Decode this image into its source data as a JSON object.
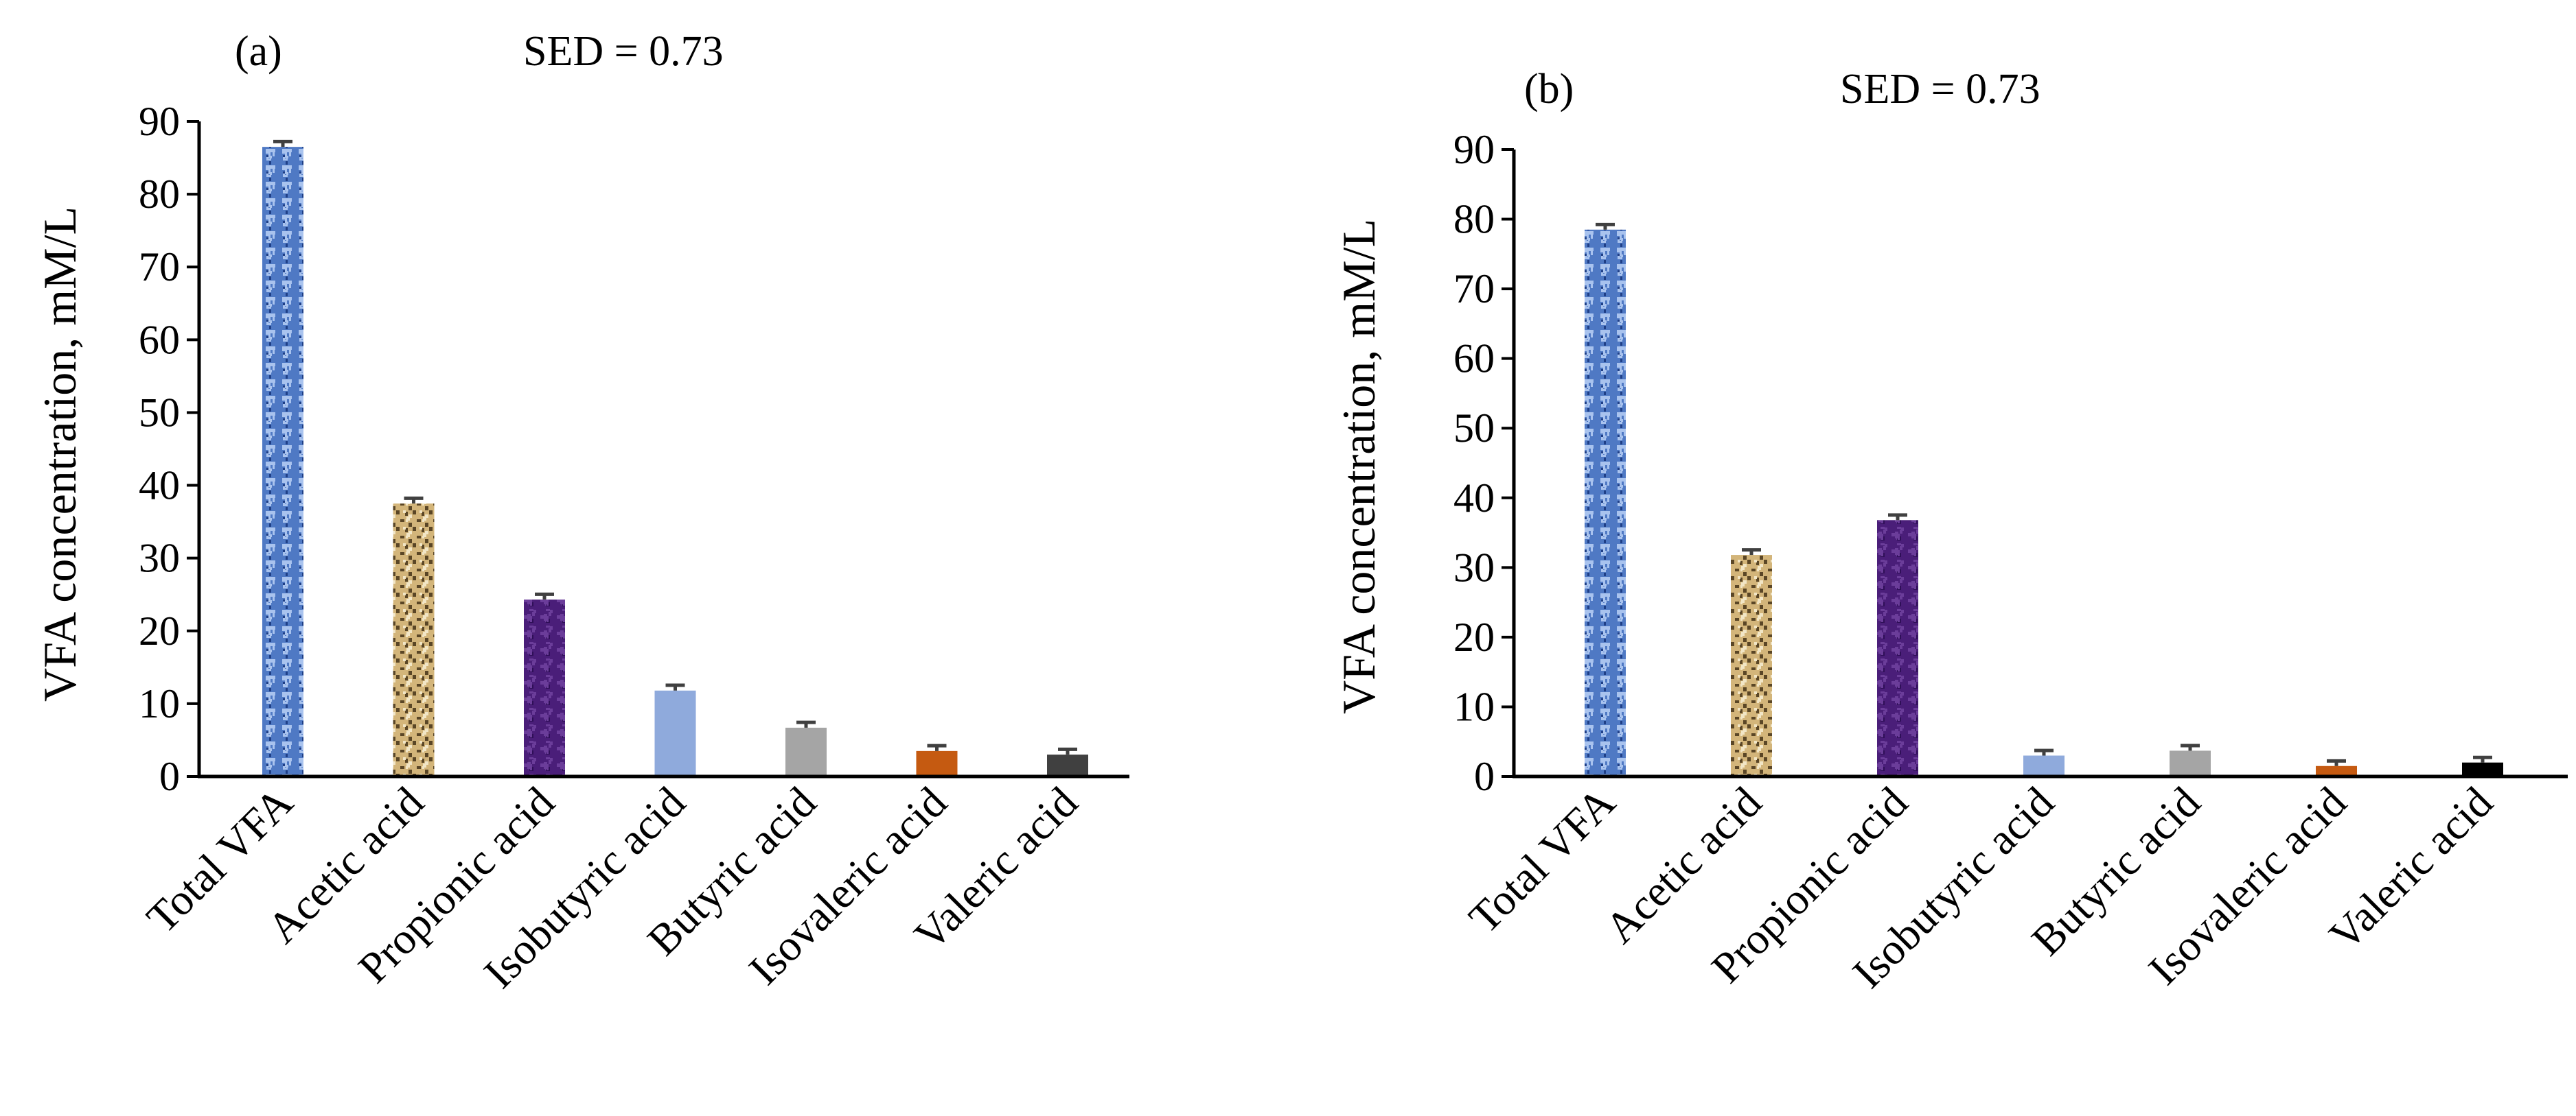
{
  "figure": {
    "sed_label": "SED = 0.73"
  },
  "patterns": {
    "blue_pattern": {
      "base": "#4f79c4",
      "dark": "#1f3f86",
      "light": "#a9c3ee"
    },
    "tan_pattern": {
      "base": "#d3b57a",
      "dark": "#5a4626",
      "light": "#f2e6c6"
    },
    "purple_pattern": {
      "base": "#4a1e79",
      "dark": "#2f0f58",
      "light": "#6b3d9a"
    }
  },
  "chart_data": [
    {
      "type": "bar",
      "panel_label": "(a)",
      "title": "SED = 0.73",
      "ylabel": "VFA concentration, mM/L",
      "xlabel": "",
      "ylim": [
        0,
        90
      ],
      "yticks": [
        "0",
        "10",
        "20",
        "30",
        "40",
        "50",
        "60",
        "70",
        "80",
        "90"
      ],
      "categories": [
        "Total VFA",
        "Acetic acid",
        "Propionic acid",
        "Isobutyric acid",
        "Butyric acid",
        "Isovaleric acid",
        "Valeric acid"
      ],
      "values": [
        86.5,
        37.5,
        24.3,
        11.8,
        6.7,
        3.5,
        3.0
      ],
      "errors": [
        0.73,
        0.73,
        0.73,
        0.73,
        0.73,
        0.73,
        0.73
      ],
      "bar_fills": [
        "blue_pattern",
        "tan_pattern",
        "purple_pattern",
        "#8faadc",
        "#a5a5a5",
        "#c55a11",
        "#404040"
      ],
      "grid": false
    },
    {
      "type": "bar",
      "panel_label": "(b)",
      "title": "SED = 0.73",
      "ylabel": "VFA concentration, mM/L",
      "xlabel": "",
      "ylim": [
        0,
        90
      ],
      "yticks": [
        "0",
        "10",
        "20",
        "30",
        "40",
        "50",
        "60",
        "70",
        "80",
        "90"
      ],
      "categories": [
        "Total VFA",
        "Acetic acid",
        "Propionic acid",
        "Isobutyric acid",
        "Butyric acid",
        "Isovaleric acid",
        "Valeric acid"
      ],
      "values": [
        78.5,
        31.8,
        36.8,
        3.0,
        3.7,
        1.5,
        2.0
      ],
      "errors": [
        0.73,
        0.73,
        0.73,
        0.73,
        0.73,
        0.73,
        0.73
      ],
      "bar_fills": [
        "blue_pattern",
        "tan_pattern",
        "purple_pattern",
        "#8faadc",
        "#a5a5a5",
        "#c55a11",
        "#000000"
      ],
      "grid": false
    }
  ]
}
